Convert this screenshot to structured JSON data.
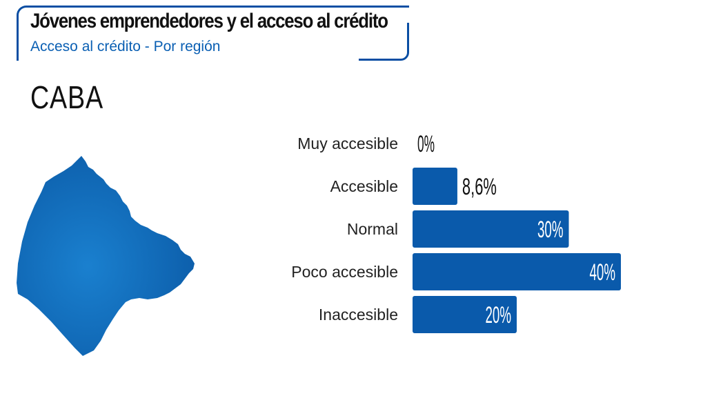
{
  "header": {
    "title": "Jóvenes emprendedores y el acceso al crédito",
    "subtitle": "Acceso al crédito - Por región"
  },
  "region": "CABA",
  "colors": {
    "bar": "#0a5aab",
    "accent": "#0a4ea3",
    "map": "#1a72c0"
  },
  "chart_data": {
    "type": "bar",
    "orientation": "horizontal",
    "categories": [
      "Muy accesible",
      "Accesible",
      "Normal",
      "Poco accesible",
      "Inaccesible"
    ],
    "values": [
      0,
      8.6,
      30,
      40,
      20
    ],
    "labels": [
      "0%",
      "8,6%",
      "30%",
      "40%",
      "20%"
    ],
    "unit": "%"
  }
}
